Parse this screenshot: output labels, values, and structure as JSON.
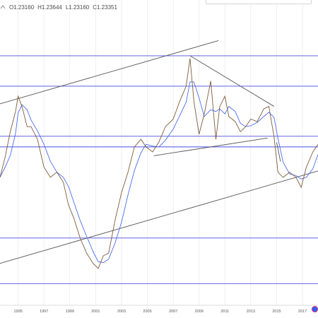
{
  "ohlc": {
    "open": "O1.23160",
    "high": "H1.23644",
    "low": "L1.23160",
    "close": "C1.23351"
  },
  "icons": {
    "symbol": "arrow-icon",
    "alert": "alert-badge-icon"
  },
  "colors": {
    "horizontal_level": "#4a4ee0",
    "trendline": "#555555",
    "price": "#7d5a3c",
    "moving_average": "#4c6cf0",
    "grid": "#e6e6e6",
    "alert": "#2962ff"
  },
  "chart_data": {
    "type": "line",
    "x_ticks": [
      "1995",
      "1997",
      "1999",
      "2001",
      "2003",
      "2005",
      "2007",
      "2009",
      "2011",
      "2013",
      "2015",
      "2017"
    ],
    "x_range": [
      1993.6,
      2018.2
    ],
    "y_range": [
      0.6,
      1.75
    ],
    "series": [
      {
        "x": [
          1993.6,
          1994.0,
          1994.4,
          1994.8,
          1995.0,
          1995.3,
          1995.7,
          1996.0,
          1996.5,
          1997.0,
          1997.5,
          1998.0,
          1998.5,
          1998.9,
          1999.3,
          1999.8,
          2000.3,
          2000.8,
          2001.2,
          2001.6,
          2002.0,
          2002.5,
          2003.0,
          2003.5,
          2004.0,
          2004.5,
          2004.9,
          2005.4,
          2005.9,
          2006.4,
          2007.0,
          2007.5,
          2008.0,
          2008.3,
          2008.6,
          2009.0,
          2009.4,
          2009.9,
          2010.3,
          2010.6,
          2011.0,
          2011.3,
          2011.8,
          2012.2,
          2012.6,
          2013.0,
          2013.5,
          2014.0,
          2014.4,
          2014.8,
          2015.1,
          2015.5,
          2016.0,
          2016.5,
          2016.9,
          2017.3,
          2017.8,
          2018.2
        ],
        "y": [
          1.1,
          1.18,
          1.28,
          1.36,
          1.42,
          1.38,
          1.3,
          1.3,
          1.25,
          1.14,
          1.1,
          1.12,
          1.08,
          0.99,
          0.94,
          0.86,
          0.8,
          0.76,
          0.74,
          0.79,
          0.8,
          0.93,
          1.04,
          1.12,
          1.22,
          1.25,
          1.22,
          1.2,
          1.24,
          1.3,
          1.33,
          1.4,
          1.46,
          1.57,
          1.4,
          1.27,
          1.35,
          1.48,
          1.25,
          1.38,
          1.42,
          1.34,
          1.32,
          1.28,
          1.3,
          1.33,
          1.32,
          1.37,
          1.38,
          1.26,
          1.12,
          1.1,
          1.12,
          1.1,
          1.06,
          1.14,
          1.2,
          1.23
        ]
      }
    ],
    "horizontal_levels": [
      1.58,
      1.46,
      1.262,
      1.22,
      0.86,
      0.68
    ],
    "trendlines": [
      {
        "x1": 1993.6,
        "y1": 1.39,
        "x2": 2010.5,
        "y2": 1.64
      },
      {
        "x1": 1993.6,
        "y1": 0.76,
        "x2": 2018.2,
        "y2": 1.125
      },
      {
        "x1": 2008.3,
        "y1": 1.58,
        "x2": 2014.8,
        "y2": 1.38
      },
      {
        "x1": 2005.5,
        "y1": 1.185,
        "x2": 2014.3,
        "y2": 1.255
      },
      {
        "x1": 2015.0,
        "y1": 1.238,
        "x2": 2015.3,
        "y2": 1.162
      }
    ]
  }
}
